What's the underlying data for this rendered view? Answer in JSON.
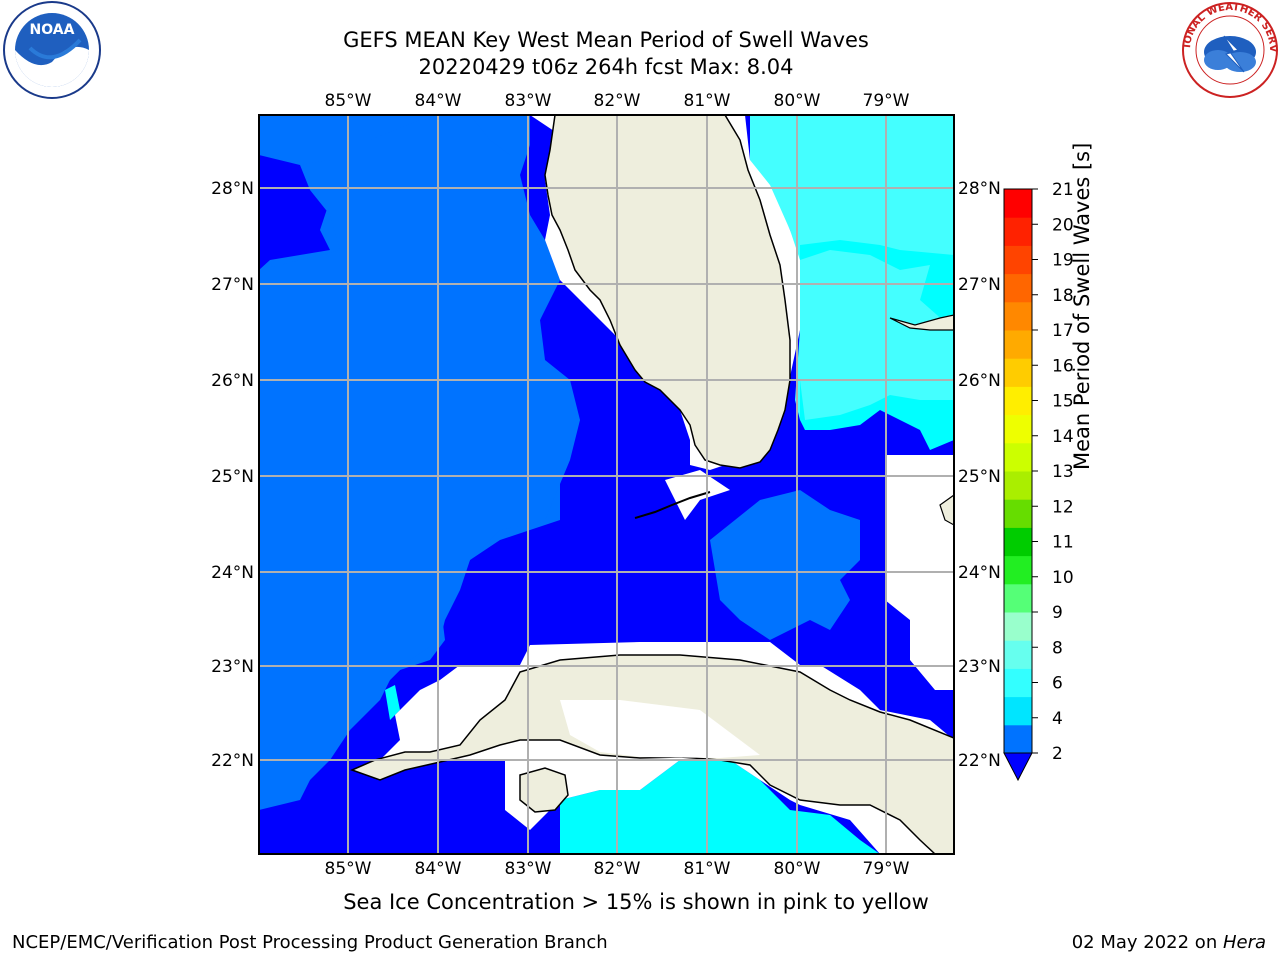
{
  "header": {
    "title_line1": "GEFS MEAN Key West Mean Period of Swell Waves",
    "title_line2": "20220429 t06z 264h fcst   Max: 8.04"
  },
  "map": {
    "lon_labels": [
      "85°W",
      "84°W",
      "83°W",
      "82°W",
      "81°W",
      "80°W",
      "79°W"
    ],
    "lat_labels": [
      "28°N",
      "27°N",
      "26°N",
      "25°N",
      "24°N",
      "23°N",
      "22°N"
    ],
    "colors": {
      "deep_blue": "#0000ff",
      "mid_blue": "#0073ff",
      "cyan": "#00ffff",
      "light_cyan": "#44ffff",
      "land": "#eeeedd",
      "grid": "#b0b0b0"
    }
  },
  "colorbar": {
    "label": "Mean Period of Swell Waves [s]",
    "ticks": [
      "21",
      "20",
      "19",
      "18",
      "17",
      "16",
      "15",
      "14",
      "13",
      "12",
      "11",
      "10",
      "9",
      "8",
      "6",
      "4",
      "2"
    ],
    "colors_bottom_to_top": [
      "#0073ff",
      "#00e5ff",
      "#33ffff",
      "#66ffee",
      "#99ffcc",
      "#55ff77",
      "#22ee22",
      "#00cc00",
      "#66dd00",
      "#aaee00",
      "#ccff00",
      "#eeff00",
      "#ffee00",
      "#ffcc00",
      "#ffaa00",
      "#ff8800",
      "#ff6600",
      "#ff4400",
      "#ff2200",
      "#ff0000"
    ],
    "under_color": "#0000ff"
  },
  "caption": "Sea Ice Concentration > 15% is shown in pink to yellow",
  "footer": {
    "left": "NCEP/EMC/Verification Post Processing Product Generation Branch",
    "right_date": "02 May 2022 on ",
    "right_machine": "Hera"
  },
  "logos": {
    "noaa_text": "NOAA",
    "nws_text": "NATIONAL WEATHER SERVICE"
  }
}
